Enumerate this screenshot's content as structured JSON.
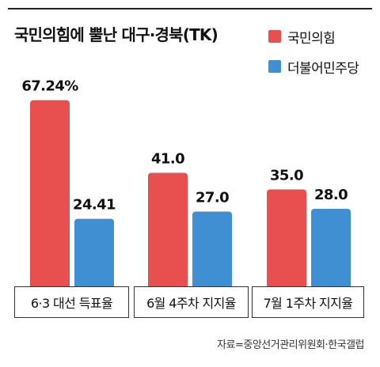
{
  "title": "국민의힘에 뿔난 대구·경북(TK)",
  "source": "자료=중앙선거관리위원회·한국갤럽",
  "colors": {
    "ppp": "#e8504f",
    "dp": "#3f8fd2"
  },
  "legend": [
    {
      "label": "국민의힘",
      "color": "#e8504f"
    },
    {
      "label": "더불어민주당",
      "color": "#3f8fd2"
    }
  ],
  "chart_data": {
    "type": "bar",
    "title": "국민의힘에 뿔난 대구·경북(TK)",
    "categories": [
      "6·3 대선 득표율",
      "6월 4주차 지지율",
      "7월 1주차 지지율"
    ],
    "series": [
      {
        "name": "국민의힘",
        "values": [
          67.24,
          41.0,
          35.0
        ],
        "labels": [
          "67.24%",
          "41.0",
          "35.0"
        ],
        "color": "#e8504f"
      },
      {
        "name": "더불어민주당",
        "values": [
          24.41,
          27.0,
          28.0
        ],
        "labels": [
          "24.41",
          "27.0",
          "28.0"
        ],
        "color": "#3f8fd2"
      }
    ],
    "grid": false,
    "legend_position": "top-right"
  }
}
